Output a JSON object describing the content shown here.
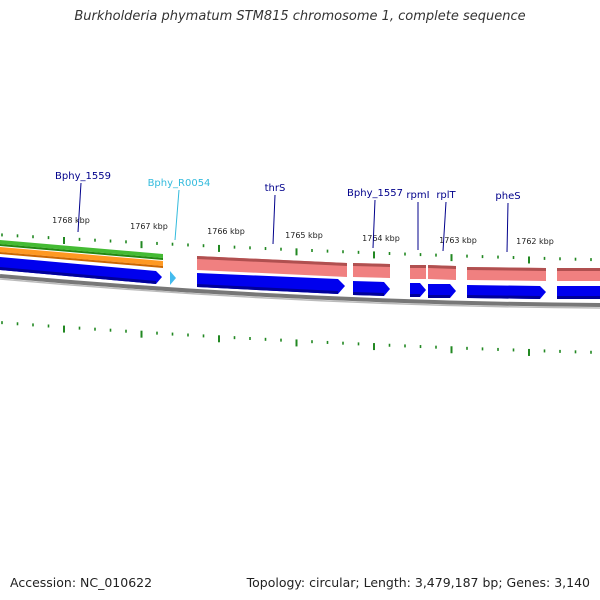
{
  "title": "Burkholderia phymatum STM815 chromosome 1, complete sequence",
  "footer": {
    "accession": "Accession: NC_010622",
    "summary": "Topology: circular; Length: 3,479,187 bp; Genes: 3,140"
  },
  "colors": {
    "gene_label": "#00008b",
    "rna_label": "#33bbdd",
    "green_track": "#44bb33",
    "orange_track": "#ff9922",
    "cds_track": "#f08080",
    "gene_track": "#0000ee",
    "rna_feature": "#44bbee",
    "backbone": "#777777",
    "tick": "#228822"
  },
  "scale_labels": [
    "1768 kbp",
    "1767 kbp",
    "1766 kbp",
    "1765 kbp",
    "1764 kbp",
    "1763 kbp",
    "1762 kbp"
  ],
  "gene_labels": [
    {
      "text": "Bphy_1559",
      "type": "gene"
    },
    {
      "text": "Bphy_R0054",
      "type": "rna"
    },
    {
      "text": "thrS",
      "type": "gene"
    },
    {
      "text": "Bphy_1557",
      "type": "gene"
    },
    {
      "text": "rpmI",
      "type": "gene"
    },
    {
      "text": "rplT",
      "type": "gene"
    },
    {
      "text": "pheS",
      "type": "gene"
    }
  ]
}
